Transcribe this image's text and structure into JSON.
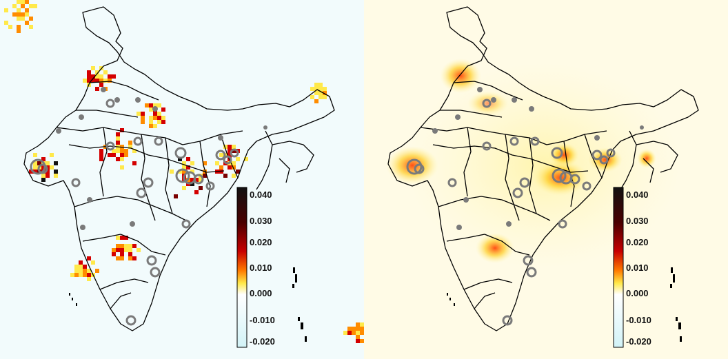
{
  "panels": [
    {
      "id": "left",
      "colorbar": {
        "ticks": [
          "0.040",
          "0.030",
          "0.020",
          "0.010",
          "0.000",
          "-0.010",
          "-0.020"
        ],
        "range": [
          -0.02,
          0.04
        ]
      }
    },
    {
      "id": "right",
      "colorbar": {
        "ticks": [
          "0.040",
          "0.030",
          "0.020",
          "0.010",
          "0.000",
          "-0.010",
          "-0.020"
        ],
        "range": [
          -0.02,
          0.04
        ]
      }
    }
  ],
  "colors": {
    "negative": "#d6f3f7",
    "zero": "#ffffff",
    "low": "#ffe94a",
    "mid": "#ff8c00",
    "high": "#d40000",
    "max": "#111111",
    "boundary": "#000000",
    "marker": "#7a7a7a"
  }
}
